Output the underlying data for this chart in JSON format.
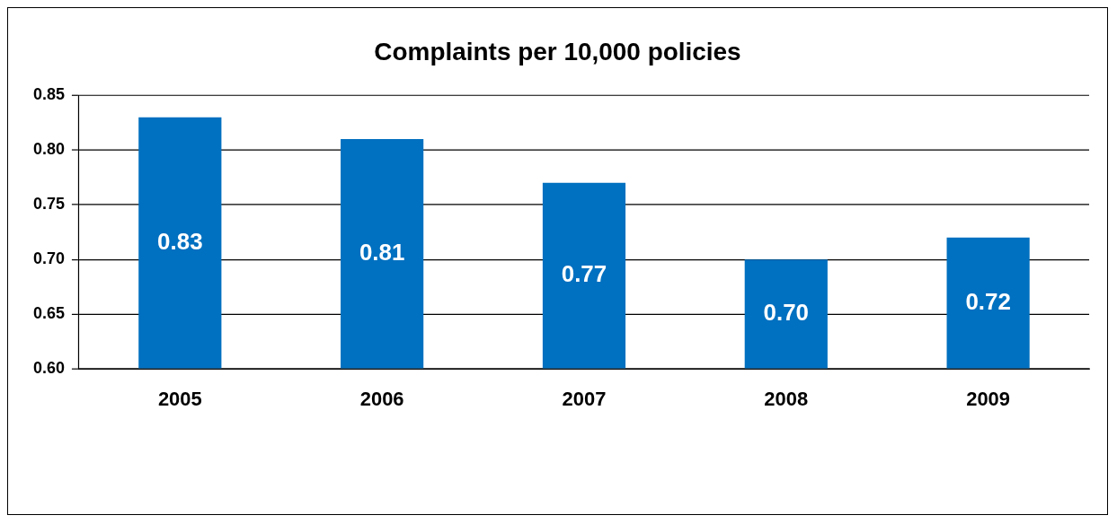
{
  "chart_data": {
    "type": "bar",
    "title": "Complaints per 10,000 policies",
    "categories": [
      "2005",
      "2006",
      "2007",
      "2008",
      "2009"
    ],
    "values": [
      0.83,
      0.81,
      0.77,
      0.7,
      0.72
    ],
    "value_labels": [
      "0.83",
      "0.81",
      "0.77",
      "0.70",
      "0.72"
    ],
    "color": "#0070c0",
    "ylim": [
      0.6,
      0.85
    ],
    "yticks": [
      {
        "value": 0.6,
        "label": "0.60"
      },
      {
        "value": 0.65,
        "label": "0.65"
      },
      {
        "value": 0.7,
        "label": "0.70"
      },
      {
        "value": 0.75,
        "label": "0.75"
      },
      {
        "value": 0.8,
        "label": "0.80"
      },
      {
        "value": 0.85,
        "label": "0.85"
      }
    ],
    "grid": "y",
    "legend": false
  }
}
